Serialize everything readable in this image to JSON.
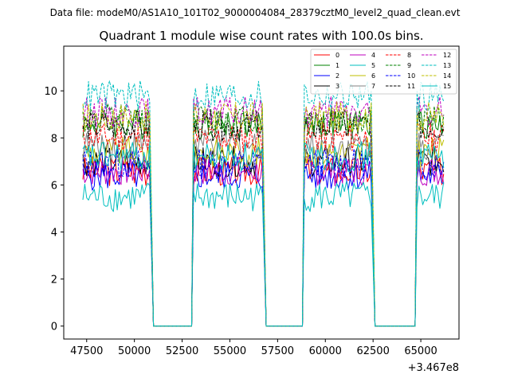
{
  "chart_data": {
    "type": "line",
    "suptitle": "Data file: modeM0/AS1A10_101T02_9000004084_28379cztM0_level2_quad_clean.evt",
    "title": "Quadrant 1 module wise count rates with 100.0s bins.",
    "xlabel": "",
    "ylabel": "",
    "x_offset_label": "+3.467e8",
    "xlim": [
      46300,
      67000
    ],
    "ylim": [
      -0.55,
      11.9
    ],
    "xticks": [
      47500,
      50000,
      52500,
      55000,
      57500,
      60000,
      62500,
      65000
    ],
    "xtick_labels": [
      "47500",
      "50000",
      "52500",
      "55000",
      "57500",
      "60000",
      "62500",
      "65000"
    ],
    "yticks": [
      0,
      2,
      4,
      6,
      8,
      10
    ],
    "ytick_labels": [
      "0",
      "2",
      "4",
      "6",
      "8",
      "10"
    ],
    "legend_position": "top-right",
    "bin_seconds": 100,
    "segments": [
      {
        "start": 47300,
        "end": 50800,
        "gap_end": 51000
      },
      {
        "start": 53100,
        "end": 56700,
        "gap_end": 56900
      },
      {
        "start": 58900,
        "end": 62400,
        "gap_end": 62600
      },
      {
        "start": 64800,
        "end": 66200,
        "gap_end": null
      }
    ],
    "gap_intervals": [
      [
        51000,
        53000
      ],
      [
        56900,
        58800
      ],
      [
        62600,
        64700
      ]
    ],
    "gap_value": 0,
    "series": [
      {
        "name": "0",
        "color": "#ff0000",
        "dash": "solid",
        "mean": 6.6
      },
      {
        "name": "1",
        "color": "#008000",
        "dash": "solid",
        "mean": 8.6
      },
      {
        "name": "2",
        "color": "#0000ff",
        "dash": "solid",
        "mean": 6.4
      },
      {
        "name": "3",
        "color": "#000000",
        "dash": "solid",
        "mean": 7.0
      },
      {
        "name": "4",
        "color": "#bf00bf",
        "dash": "solid",
        "mean": 6.6
      },
      {
        "name": "5",
        "color": "#00bfbf",
        "dash": "solid",
        "mean": 5.5
      },
      {
        "name": "6",
        "color": "#bfbf00",
        "dash": "solid",
        "mean": 7.4
      },
      {
        "name": "7",
        "color": "#808080",
        "dash": "solid",
        "mean": 7.7
      },
      {
        "name": "8",
        "color": "#ff0000",
        "dash": "dashed",
        "mean": 8.0
      },
      {
        "name": "9",
        "color": "#008000",
        "dash": "dashed",
        "mean": 8.8
      },
      {
        "name": "10",
        "color": "#0000ff",
        "dash": "dashed",
        "mean": 6.9
      },
      {
        "name": "11",
        "color": "#000000",
        "dash": "dashed",
        "mean": 8.5
      },
      {
        "name": "12",
        "color": "#bf00bf",
        "dash": "dashed",
        "mean": 9.1
      },
      {
        "name": "13",
        "color": "#00bfbf",
        "dash": "dashed",
        "mean": 9.8
      },
      {
        "name": "14",
        "color": "#bfbf00",
        "dash": "dashed",
        "mean": 8.9
      },
      {
        "name": "15",
        "color": "#00bfbf",
        "dash": "solid",
        "mean": 7.2
      }
    ]
  }
}
